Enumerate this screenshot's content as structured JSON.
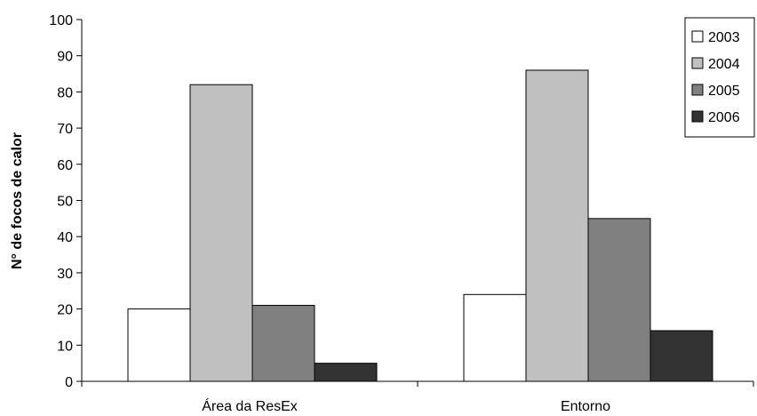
{
  "chart_data": {
    "type": "bar",
    "title": "",
    "xlabel": "",
    "ylabel": "N° de focos de calor",
    "ylim": [
      0,
      100
    ],
    "yticks": [
      0,
      10,
      20,
      30,
      40,
      50,
      60,
      70,
      80,
      90,
      100
    ],
    "categories": [
      "Área da ResEx",
      "Entorno"
    ],
    "series": [
      {
        "name": "2003",
        "color": "#ffffff",
        "values": [
          20,
          24
        ]
      },
      {
        "name": "2004",
        "color": "#c0c0c0",
        "values": [
          82,
          86
        ]
      },
      {
        "name": "2005",
        "color": "#808080",
        "values": [
          21,
          45
        ]
      },
      {
        "name": "2006",
        "color": "#333333",
        "values": [
          5,
          14
        ]
      }
    ],
    "grid": false,
    "legend": "top-right"
  }
}
